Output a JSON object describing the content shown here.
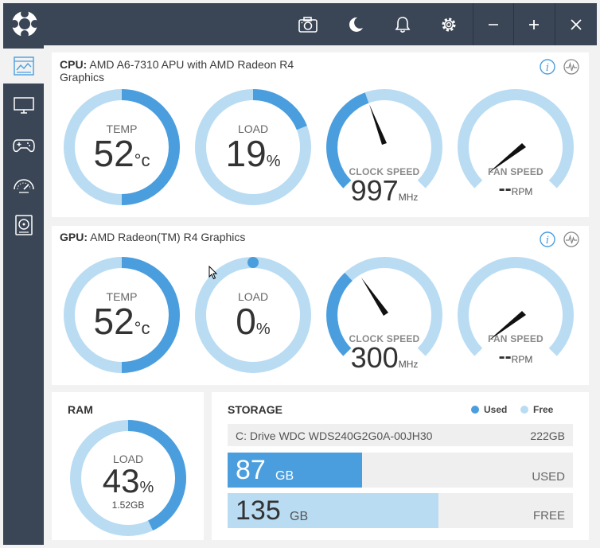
{
  "cpu": {
    "prefix": "CPU:",
    "name_line1": "AMD A6-7310 APU with AMD Radeon R4",
    "name_line2": "Graphics",
    "temp": {
      "label": "TEMP",
      "value": "52",
      "unit": "°c"
    },
    "load": {
      "label": "LOAD",
      "value": "19",
      "unit": "%",
      "fraction": 0.19
    },
    "clock": {
      "label": "CLOCK SPEED",
      "value": "997",
      "unit": "MHz"
    },
    "fan": {
      "label": "FAN SPEED",
      "value": "--",
      "unit": "RPM"
    }
  },
  "gpu": {
    "prefix": "GPU:",
    "name": "AMD Radeon(TM) R4 Graphics",
    "temp": {
      "label": "TEMP",
      "value": "52",
      "unit": "°c"
    },
    "load": {
      "label": "LOAD",
      "value": "0",
      "unit": "%",
      "fraction": 0.0
    },
    "clock": {
      "label": "CLOCK SPEED",
      "value": "300",
      "unit": "MHz"
    },
    "fan": {
      "label": "FAN SPEED",
      "value": "--",
      "unit": "RPM"
    }
  },
  "ram": {
    "title": "RAM",
    "label": "LOAD",
    "value": "43",
    "unit": "%",
    "fraction": 0.43,
    "amount": "1.52GB"
  },
  "storage": {
    "title": "STORAGE",
    "legend_used": "Used",
    "legend_free": "Free",
    "drive_name": "C: Drive WDC WDS240G2G0A-00JH30",
    "drive_size": "222GB",
    "used_value": "87",
    "used_unit": "GB",
    "used_label": "USED",
    "used_fraction": 0.39,
    "free_value": "135",
    "free_unit": "GB",
    "free_label": "FREE",
    "free_fraction": 0.61
  },
  "colors": {
    "accent": "#4b9ede",
    "light": "#b9dcf3",
    "chrome": "#3a4555"
  },
  "icons": {
    "titlebar": [
      "app-logo-icon",
      "camera-icon",
      "moon-icon",
      "bell-icon",
      "gear-icon",
      "minimize-icon",
      "plus-icon",
      "close-icon"
    ],
    "sidebar": [
      "dashboard-icon",
      "monitor-icon",
      "gamepad-icon",
      "speedometer-icon",
      "drive-icon"
    ]
  }
}
